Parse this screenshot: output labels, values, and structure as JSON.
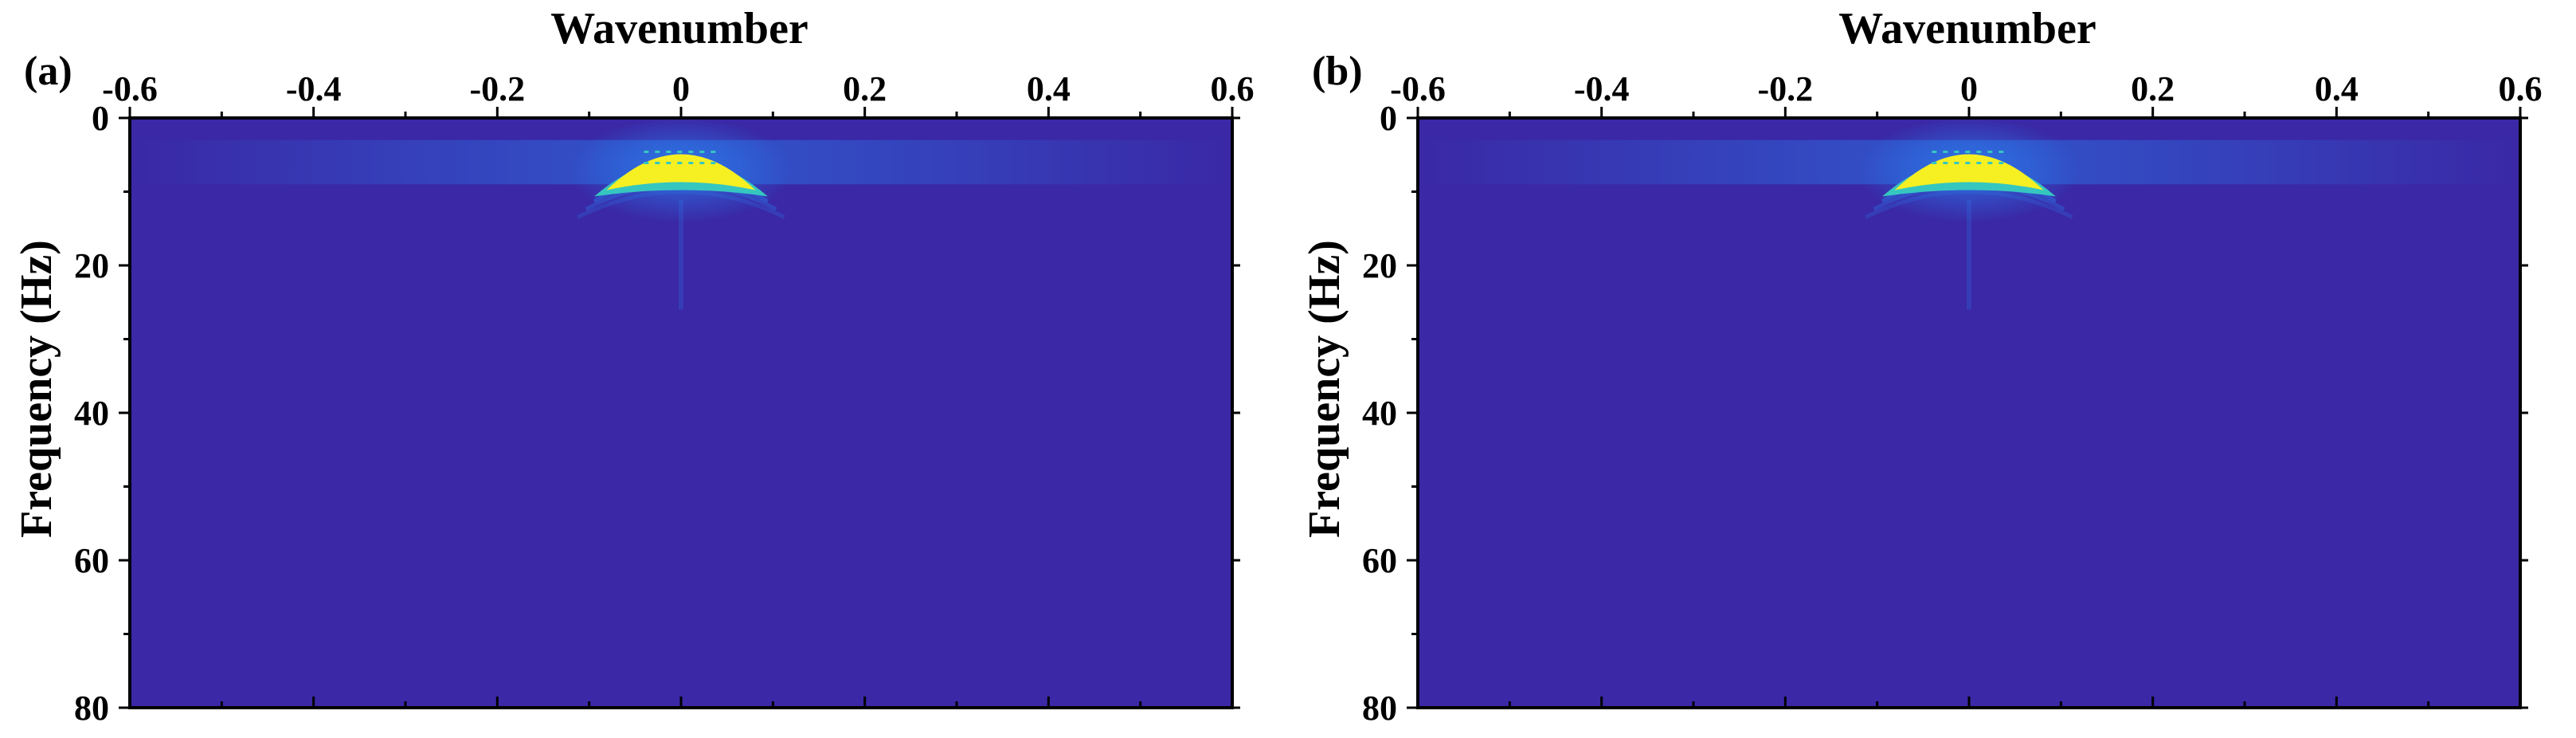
{
  "colors": {
    "background": "#3a28a6",
    "mid": "#2a78e8",
    "cyan": "#36c6c0",
    "peak": "#f6ef22"
  },
  "chart_data": [
    {
      "type": "heatmap",
      "panel_label": "(a)",
      "title": "",
      "xlabel": "Wavenumber",
      "ylabel": "Frequency (Hz)",
      "xlim": [
        -0.6,
        0.6
      ],
      "ylim": [
        0,
        80
      ],
      "x_ticks": [
        -0.6,
        -0.4,
        -0.2,
        0,
        0.2,
        0.4,
        0.6
      ],
      "x_tick_labels": [
        "-0.6",
        "-0.4",
        "-0.2",
        "0",
        "0.2",
        "0.4",
        "0.6"
      ],
      "y_ticks": [
        0,
        20,
        40,
        60,
        80
      ],
      "y_tick_labels": [
        "0",
        "20",
        "40",
        "60",
        "80"
      ],
      "x_axis_position": "top",
      "y_inverted": true,
      "grid": false,
      "colormap": "parula",
      "energy_peak": {
        "wavenumber": 0,
        "frequency_range": [
          2,
          10
        ],
        "wavenumber_halfwidth": 0.09
      }
    },
    {
      "type": "heatmap",
      "panel_label": "(b)",
      "title": "",
      "xlabel": "Wavenumber",
      "ylabel": "Frequency (Hz)",
      "xlim": [
        -0.6,
        0.6
      ],
      "ylim": [
        0,
        80
      ],
      "x_ticks": [
        -0.6,
        -0.4,
        -0.2,
        0,
        0.2,
        0.4,
        0.6
      ],
      "x_tick_labels": [
        "-0.6",
        "-0.4",
        "-0.2",
        "0",
        "0.2",
        "0.4",
        "0.6"
      ],
      "y_ticks": [
        0,
        20,
        40,
        60,
        80
      ],
      "y_tick_labels": [
        "0",
        "20",
        "40",
        "60",
        "80"
      ],
      "x_axis_position": "top",
      "y_inverted": true,
      "grid": false,
      "colormap": "parula",
      "energy_peak": {
        "wavenumber": 0,
        "frequency_range": [
          2,
          10
        ],
        "wavenumber_halfwidth": 0.09
      }
    }
  ]
}
